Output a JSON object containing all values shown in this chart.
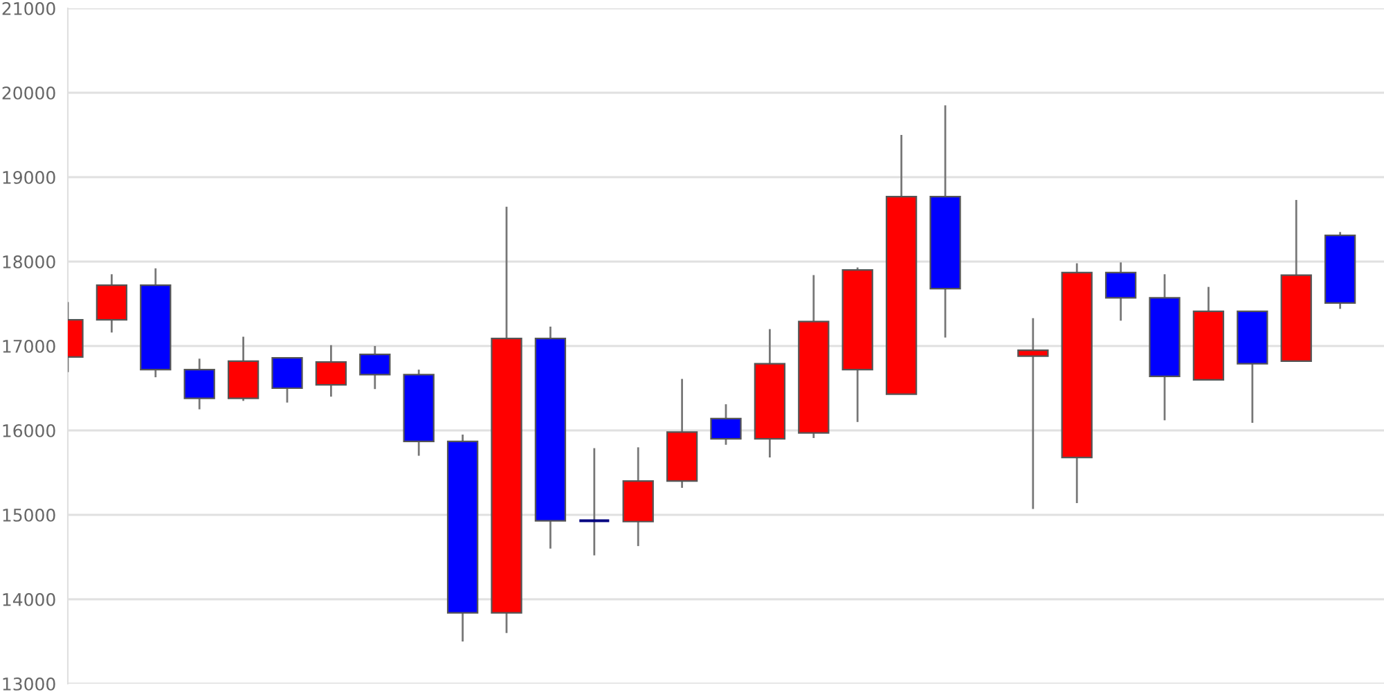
{
  "chart_data": {
    "type": "candlestick",
    "categories": [
      null,
      null,
      null,
      null,
      null,
      null,
      null,
      null,
      null,
      null,
      null,
      null,
      null,
      null,
      null,
      null,
      null,
      null,
      null,
      null,
      null,
      null,
      null,
      null,
      null,
      null,
      null,
      null,
      null,
      null
    ],
    "ohlc": [
      [
        16870,
        17520,
        16690,
        17310
      ],
      [
        17310,
        17850,
        17160,
        17720
      ],
      [
        17720,
        17920,
        16630,
        16720
      ],
      [
        16720,
        16850,
        16250,
        16380
      ],
      [
        16380,
        17110,
        16350,
        16820
      ],
      [
        16860,
        16860,
        16330,
        16500
      ],
      [
        16540,
        17010,
        16400,
        16810
      ],
      [
        16900,
        17000,
        16490,
        16660
      ],
      [
        16660,
        16720,
        15700,
        15870
      ],
      [
        15870,
        15950,
        13500,
        13840
      ],
      [
        13840,
        18650,
        13600,
        17090
      ],
      [
        17090,
        17230,
        14600,
        14930
      ],
      [
        14930,
        15790,
        14520,
        14930
      ],
      [
        14920,
        15800,
        14630,
        15400
      ],
      [
        15400,
        16610,
        15320,
        15980
      ],
      [
        16140,
        16310,
        15830,
        15900
      ],
      [
        15900,
        17200,
        15680,
        16790
      ],
      [
        15970,
        17840,
        15910,
        17290
      ],
      [
        16720,
        17930,
        16100,
        17900
      ],
      [
        16430,
        19500,
        16430,
        18770
      ],
      [
        18770,
        19850,
        17100,
        17680
      ],
      null,
      [
        16880,
        17330,
        15070,
        16950
      ],
      [
        15680,
        17980,
        15140,
        17870
      ],
      [
        17870,
        17990,
        17300,
        17570
      ],
      [
        17570,
        17850,
        16120,
        16640
      ],
      [
        16600,
        17700,
        16600,
        17410
      ],
      [
        17410,
        17410,
        16090,
        16790
      ],
      [
        16820,
        18730,
        16820,
        17840
      ],
      [
        18310,
        18350,
        17440,
        17510
      ]
    ],
    "colors": [
      "#ff0000",
      "#ff0000",
      "#0000ff",
      "#0000ff",
      "#ff0000",
      "#0000ff",
      "#ff0000",
      "#0000ff",
      "#0000ff",
      "#0000ff",
      "#ff0000",
      "#0000ff",
      "#000080",
      "#ff0000",
      "#ff0000",
      "#0000ff",
      "#ff0000",
      "#ff0000",
      "#ff0000",
      "#ff0000",
      "#0000ff",
      null,
      "#ff0000",
      "#ff0000",
      "#0000ff",
      "#0000ff",
      "#ff0000",
      "#0000ff",
      "#ff0000",
      "#0000ff"
    ],
    "ylim": [
      13000,
      21000
    ],
    "yticks": [
      13000,
      14000,
      15000,
      16000,
      17000,
      18000,
      19000,
      20000,
      21000
    ],
    "grid": "y",
    "tick_labels": "y"
  }
}
